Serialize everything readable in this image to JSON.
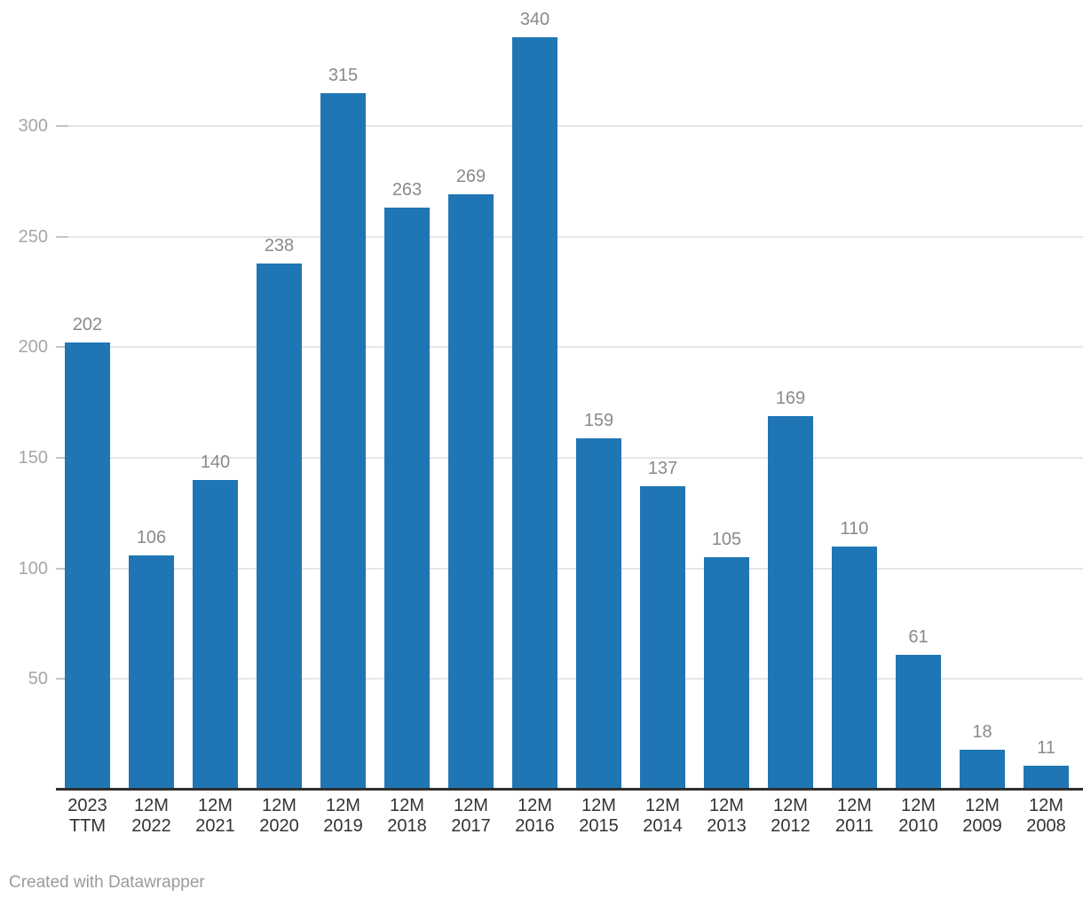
{
  "chart_data": {
    "type": "bar",
    "categories": [
      "2023 TTM",
      "12M 2022",
      "12M 2021",
      "12M 2020",
      "12M 2019",
      "12M 2018",
      "12M 2017",
      "12M 2016",
      "12M 2015",
      "12M 2014",
      "12M 2013",
      "12M 2012",
      "12M 2011",
      "12M 2010",
      "12M 2009",
      "12M 2008"
    ],
    "values": [
      202,
      106,
      140,
      238,
      315,
      263,
      269,
      340,
      159,
      137,
      105,
      169,
      110,
      61,
      18,
      11
    ],
    "title": "",
    "xlabel": "",
    "ylabel": "",
    "ylim": [
      0,
      357
    ],
    "yticks": [
      50,
      100,
      150,
      200,
      250,
      300
    ],
    "grid": true,
    "legend": "none",
    "value_labels_shown": true
  },
  "colors": {
    "bar": "#2076b5",
    "gridline": "#e6e6e6",
    "tick": "#c4c4c4",
    "baseline": "#2f2f2f",
    "value_label": "#8a8a8a",
    "x_label": "#333333",
    "y_label": "#a6a6a6",
    "footer": "#9b9b9b",
    "background": "#ffffff"
  },
  "footer": {
    "text": "Created with Datawrapper"
  }
}
